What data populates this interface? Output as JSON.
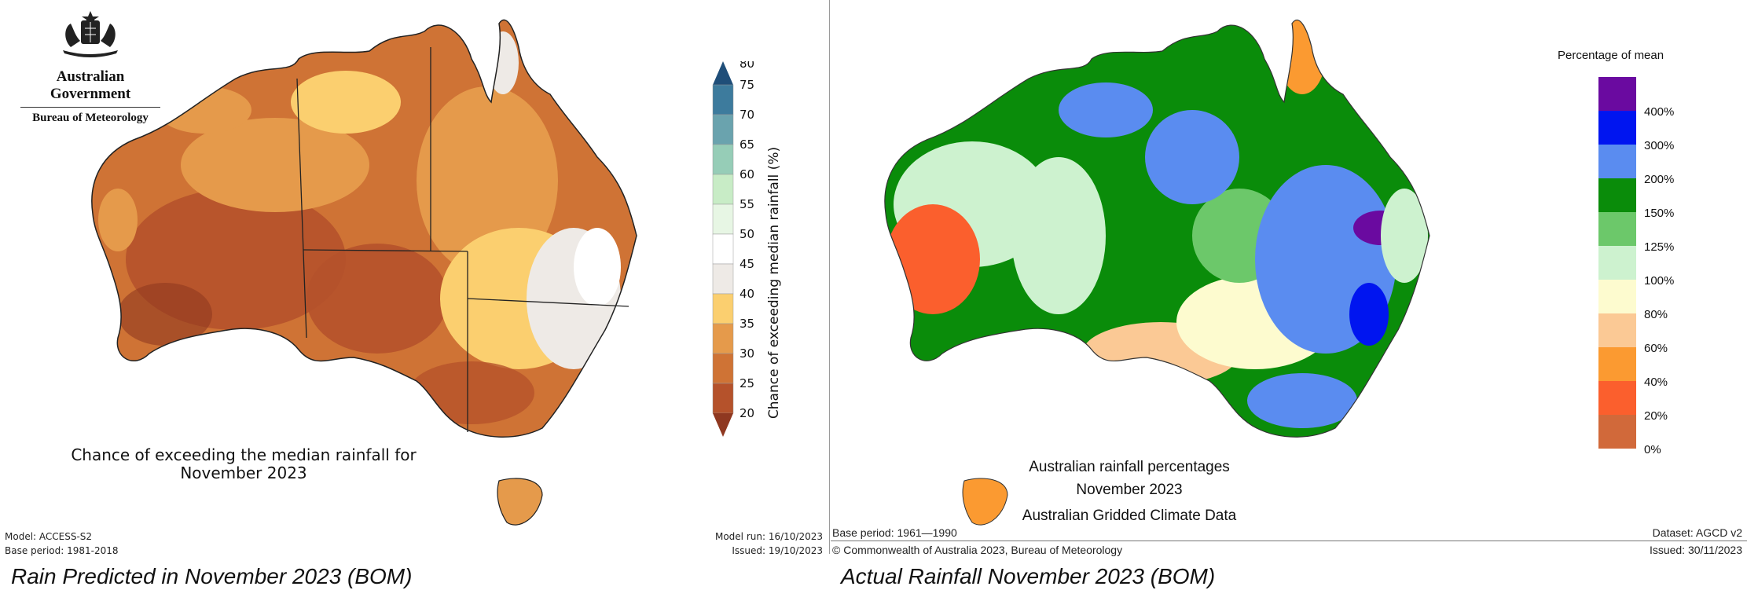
{
  "left": {
    "government": "Australian Government",
    "bureau": "Bureau of Meteorology",
    "map_title_line1": "Chance of exceeding the median rainfall for",
    "map_title_line2": "November 2023",
    "model": "Model: ACCESS-S2",
    "base_period": "Base period: 1981-2018",
    "model_run": "Model run: 16/10/2023",
    "issued": "Issued: 19/10/2023",
    "legend_title": "Chance of exceeding median rainfall (%)",
    "legend": [
      {
        "label": "80",
        "color": "#1f4e79"
      },
      {
        "label": "75",
        "color": "#3d7b9d"
      },
      {
        "label": "70",
        "color": "#6aa3ae"
      },
      {
        "label": "65",
        "color": "#96cdb7"
      },
      {
        "label": "60",
        "color": "#c8ecc6"
      },
      {
        "label": "55",
        "color": "#e7f6e4"
      },
      {
        "label": "50",
        "color": "#ffffff"
      },
      {
        "label": "45",
        "color": "#eeeae6"
      },
      {
        "label": "40",
        "color": "#fbcf6f"
      },
      {
        "label": "35",
        "color": "#e59a4b"
      },
      {
        "label": "30",
        "color": "#cf7335"
      },
      {
        "label": "25",
        "color": "#b5522b"
      },
      {
        "label": "20",
        "color": "#8f3820"
      }
    ],
    "caption": "Rain Predicted in November 2023 (BOM)"
  },
  "right": {
    "legend_title": "Percentage of mean",
    "legend": [
      {
        "label": "400%",
        "color": "#6a0aa0"
      },
      {
        "label": "300%",
        "color": "#0015f0"
      },
      {
        "label": "200%",
        "color": "#5a8cf0"
      },
      {
        "label": "150%",
        "color": "#0a8c0a"
      },
      {
        "label": "125%",
        "color": "#6cc86a"
      },
      {
        "label": "100%",
        "color": "#cdf2cf"
      },
      {
        "label": "80%",
        "color": "#fdfbcf"
      },
      {
        "label": "60%",
        "color": "#fbc995"
      },
      {
        "label": "40%",
        "color": "#fb9a31"
      },
      {
        "label": "20%",
        "color": "#fb5f2d"
      },
      {
        "label": "0%",
        "color": "#d1693a"
      }
    ],
    "title_line1": "Australian rainfall percentages",
    "title_line2": "November 2023",
    "title_line3": "Australian Gridded Climate Data",
    "base_period": "Base period: 1961—1990",
    "dataset": "Dataset: AGCD v2",
    "copyright": "© Commonwealth of Australia 2023, Bureau of Meteorology",
    "issued": "Issued: 30/11/2023",
    "caption": "Actual Rainfall  November 2023 (BOM)"
  }
}
